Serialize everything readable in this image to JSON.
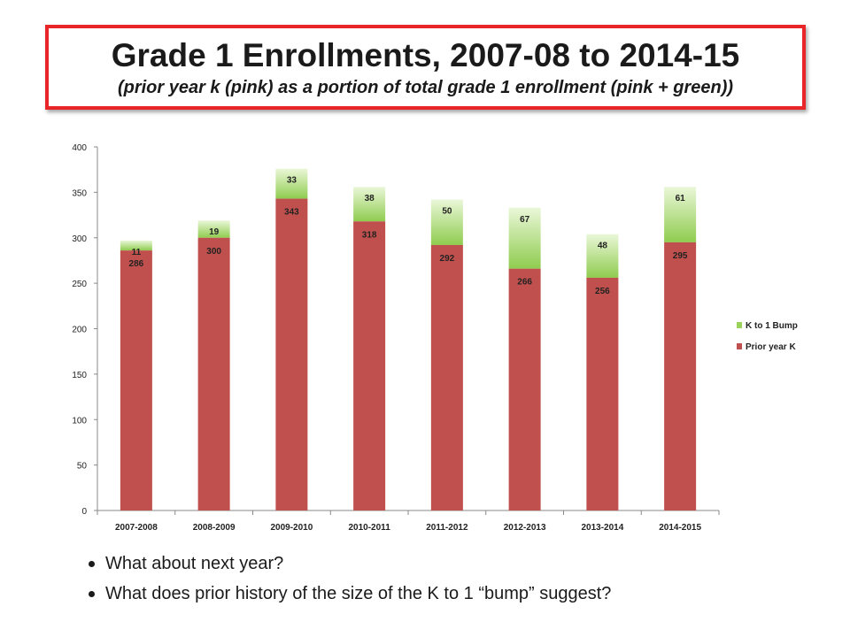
{
  "title": {
    "main": "Grade 1 Enrollments, 2007-08 to 2014-15",
    "subtitle": "(prior year k (pink) as a portion of total grade 1 enrollment (pink + green))"
  },
  "chart_data": {
    "type": "bar",
    "stacked": true,
    "categories": [
      "2007-2008",
      "2008-2009",
      "2009-2010",
      "2010-2011",
      "2011-2012",
      "2012-2013",
      "2013-2014",
      "2014-2015"
    ],
    "series": [
      {
        "name": "Prior year K",
        "values": [
          286,
          300,
          343,
          318,
          292,
          266,
          256,
          295
        ],
        "color": "#c0504d"
      },
      {
        "name": "K to 1 Bump",
        "values": [
          11,
          19,
          33,
          38,
          50,
          67,
          48,
          61
        ],
        "color": "#9bd35a"
      }
    ],
    "ylim": [
      0,
      400
    ],
    "yticks": [
      0,
      50,
      100,
      150,
      200,
      250,
      300,
      350,
      400
    ],
    "legend_position": "right",
    "grid": false
  },
  "bullets": [
    "What about next year?",
    "What does prior history of the size of the K to 1 “bump” suggest?"
  ]
}
